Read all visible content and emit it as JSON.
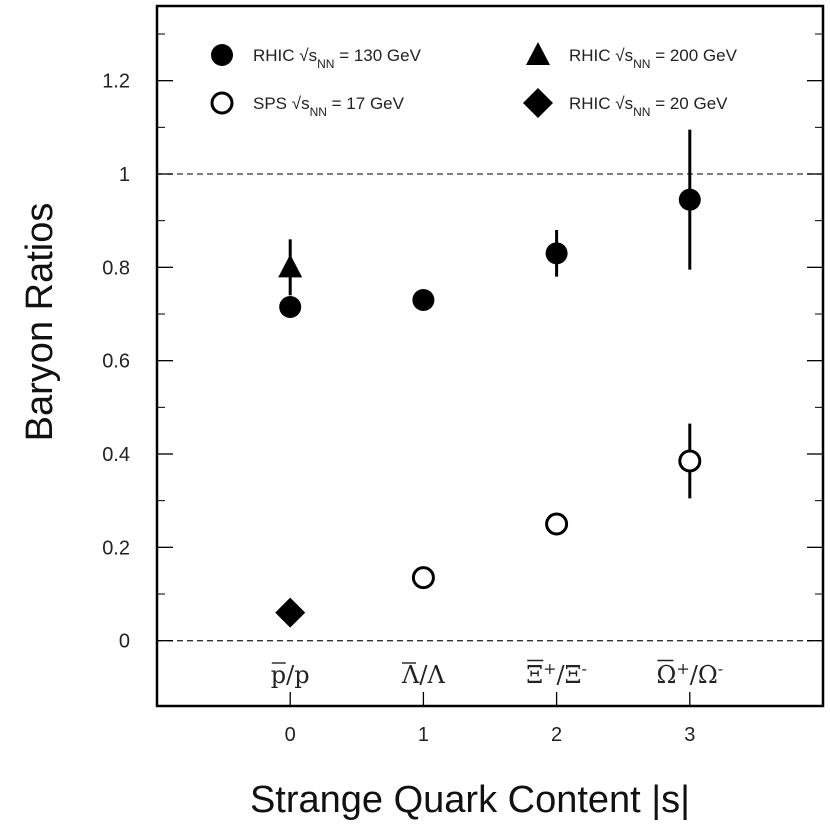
{
  "chart_data": {
    "type": "scatter",
    "xlabel": "Strange Quark Content |s|",
    "ylabel": "Baryon Ratios",
    "xlim": [
      -1,
      4
    ],
    "ylim": [
      -0.14,
      1.36
    ],
    "x_ticks": [
      0,
      1,
      2,
      3
    ],
    "x_tick_labels": [
      "0",
      "1",
      "2",
      "3"
    ],
    "y_ticks": [
      0,
      0.2,
      0.4,
      0.6,
      0.8,
      1,
      1.2
    ],
    "y_tick_labels": [
      "0",
      "0.2",
      "0.4",
      "0.6",
      "0.8",
      "1",
      "1.2"
    ],
    "reference_lines": [
      0,
      1
    ],
    "category_labels": [
      "p̄/p",
      "Λ̄/Λ",
      "Ξ⁺/Ξ⁻",
      "Ω̄⁺/Ω⁻"
    ],
    "legend_position": "top",
    "series": [
      {
        "name": "RHIC √sNN = 130 GeV",
        "marker": "circle-filled",
        "color": "#000000",
        "x": [
          0,
          1,
          2,
          3
        ],
        "y": [
          0.715,
          0.73,
          0.83,
          0.945
        ],
        "yerr": [
          0.02,
          0.02,
          0.05,
          0.15
        ]
      },
      {
        "name": "RHIC √sNN = 200 GeV",
        "marker": "triangle-filled",
        "color": "#000000",
        "x": [
          0
        ],
        "y": [
          0.8
        ],
        "yerr": [
          0.06
        ]
      },
      {
        "name": "SPS √sNN = 17 GeV",
        "marker": "circle-open",
        "color": "#000000",
        "x": [
          1,
          2,
          3
        ],
        "y": [
          0.135,
          0.25,
          0.385
        ],
        "yerr": [
          0.01,
          0.01,
          0.08
        ]
      },
      {
        "name": "RHIC √sNN = 20 GeV",
        "marker": "diamond-filled",
        "color": "#000000",
        "x": [
          0
        ],
        "y": [
          0.06
        ],
        "yerr": [
          0.01
        ]
      }
    ]
  },
  "legend": [
    {
      "prefix": "RHIC ",
      "energy": "= 130 GeV"
    },
    {
      "prefix": "RHIC ",
      "energy": "= 200 GeV"
    },
    {
      "prefix": "SPS ",
      "energy": "= 17 GeV"
    },
    {
      "prefix": "RHIC ",
      "energy": "= 20   GeV"
    }
  ],
  "legend_symbols": {
    "sqrt": "√",
    "s": "s",
    "nn": "NN"
  },
  "category_parts": [
    {
      "base": "p",
      "sup": "",
      "sep": "/",
      "base2": "p",
      "sup2": ""
    },
    {
      "base": "Λ",
      "sup": "",
      "sep": "/",
      "base2": "Λ",
      "sup2": ""
    },
    {
      "base": "Ξ",
      "sup": "+",
      "sep": "/",
      "base2": "Ξ",
      "sup2": "-"
    },
    {
      "base": "Ω",
      "sup": "+",
      "sep": "/",
      "base2": "Ω",
      "sup2": "-"
    }
  ]
}
